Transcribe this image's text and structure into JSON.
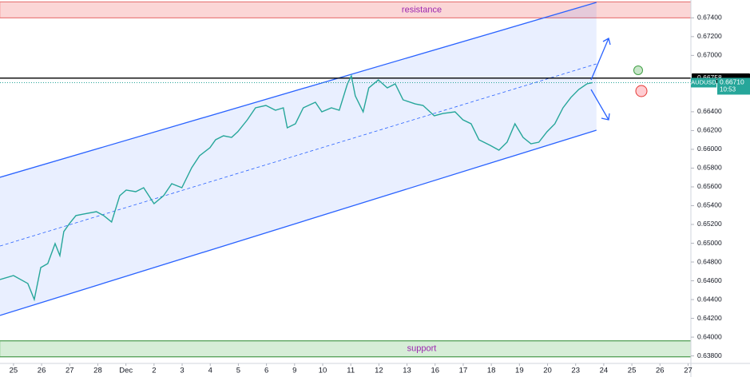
{
  "chart_data": {
    "type": "line",
    "symbol": "AUDUSD",
    "x": [
      -0.48,
      0,
      0.51,
      0.74,
      0.97,
      1.22,
      1.48,
      1.65,
      1.79,
      1.99,
      2.22,
      2.5,
      2.95,
      3.21,
      3.49,
      3.78,
      4.01,
      4.35,
      4.63,
      5.0,
      5.34,
      5.63,
      5.99,
      6.34,
      6.62,
      6.99,
      7.19,
      7.47,
      7.76,
      7.98,
      8.32,
      8.61,
      8.98,
      9.32,
      9.6,
      9.74,
      10.03,
      10.31,
      10.74,
      10.97,
      11.31,
      11.59,
      11.88,
      12.02,
      12.16,
      12.44,
      12.64,
      12.98,
      13.3,
      13.58,
      13.86,
      14.29,
      14.57,
      14.97,
      15.28,
      15.71,
      15.99,
      16.28,
      16.56,
      16.96,
      17.27,
      17.56,
      17.84,
      18.13,
      18.41,
      18.69,
      18.98,
      19.26,
      19.55,
      19.83,
      20.11,
      20.4,
      20.6
    ],
    "series": [
      {
        "name": "AUDUSD",
        "color": "#26a69a",
        "values": [
          0.64613,
          0.64656,
          0.64571,
          0.64401,
          0.64741,
          0.64783,
          0.64996,
          0.64868,
          0.65124,
          0.65209,
          0.65294,
          0.65311,
          0.65336,
          0.65294,
          0.65226,
          0.65506,
          0.65566,
          0.65549,
          0.65591,
          0.65421,
          0.65506,
          0.65634,
          0.65591,
          0.65804,
          0.65932,
          0.66017,
          0.66102,
          0.66144,
          0.66127,
          0.66187,
          0.66314,
          0.66442,
          0.66467,
          0.66416,
          0.66442,
          0.66229,
          0.66272,
          0.66442,
          0.66501,
          0.66399,
          0.66442,
          0.66416,
          0.66697,
          0.66782,
          0.66569,
          0.66399,
          0.66654,
          0.66739,
          0.66654,
          0.66697,
          0.66527,
          0.66484,
          0.66467,
          0.66357,
          0.66382,
          0.66399,
          0.66314,
          0.66272,
          0.66102,
          0.66042,
          0.65991,
          0.66076,
          0.66272,
          0.66127,
          0.66059,
          0.66076,
          0.66187,
          0.66272,
          0.66442,
          0.66552,
          0.66637,
          0.66697,
          0.6671
        ]
      }
    ],
    "xlim": [
      -0.48,
      24.1
    ],
    "xticks": [
      {
        "value": 0,
        "label": "25"
      },
      {
        "value": 1,
        "label": "26"
      },
      {
        "value": 2,
        "label": "27"
      },
      {
        "value": 3,
        "label": "28"
      },
      {
        "value": 4,
        "label": "Dec"
      },
      {
        "value": 5,
        "label": "2"
      },
      {
        "value": 6,
        "label": "3"
      },
      {
        "value": 7,
        "label": "4"
      },
      {
        "value": 8,
        "label": "5"
      },
      {
        "value": 9,
        "label": "6"
      },
      {
        "value": 10,
        "label": "9"
      },
      {
        "value": 11,
        "label": "10"
      },
      {
        "value": 12,
        "label": "11"
      },
      {
        "value": 13,
        "label": "12"
      },
      {
        "value": 14,
        "label": "13"
      },
      {
        "value": 15,
        "label": "16"
      },
      {
        "value": 16,
        "label": "17"
      },
      {
        "value": 17,
        "label": "18"
      },
      {
        "value": 18,
        "label": "19"
      },
      {
        "value": 19,
        "label": "20"
      },
      {
        "value": 20,
        "label": "23"
      },
      {
        "value": 21,
        "label": "24"
      },
      {
        "value": 22,
        "label": "25"
      },
      {
        "value": 23,
        "label": "26"
      },
      {
        "value": 24,
        "label": "27"
      }
    ],
    "ylim": [
      0.6372,
      0.6759
    ],
    "yticks": [
      {
        "value": 0.674,
        "label": "0.67400"
      },
      {
        "value": 0.672,
        "label": "0.67200"
      },
      {
        "value": 0.67,
        "label": "0.67000"
      },
      {
        "value": 0.664,
        "label": "0.66400"
      },
      {
        "value": 0.662,
        "label": "0.66200"
      },
      {
        "value": 0.66,
        "label": "0.66000"
      },
      {
        "value": 0.658,
        "label": "0.65800"
      },
      {
        "value": 0.656,
        "label": "0.65600"
      },
      {
        "value": 0.654,
        "label": "0.65400"
      },
      {
        "value": 0.652,
        "label": "0.65200"
      },
      {
        "value": 0.65,
        "label": "0.65000"
      },
      {
        "value": 0.648,
        "label": "0.64800"
      },
      {
        "value": 0.646,
        "label": "0.64600"
      },
      {
        "value": 0.644,
        "label": "0.64400"
      },
      {
        "value": 0.642,
        "label": "0.64200"
      },
      {
        "value": 0.64,
        "label": "0.64000"
      },
      {
        "value": 0.638,
        "label": "0.63800"
      }
    ],
    "price_line": 0.66758,
    "last_price": {
      "value": 0.6671,
      "label": "0.66710"
    },
    "countdown": "10:53",
    "zones": [
      {
        "label": "resistance",
        "range": [
          0.674,
          0.6757
        ],
        "color": "#f7a5a5"
      },
      {
        "label": "support",
        "range": [
          0.6379,
          0.6396
        ],
        "color": "#a5d6a7"
      }
    ],
    "channel": {
      "color": "#2962ff",
      "upper": {
        "x": [
          -0.48,
          20.74
        ],
        "y": [
          0.65702,
          0.67564
        ]
      },
      "middle": {
        "x": [
          -0.48,
          20.74
        ],
        "y": [
          0.6497,
          0.6691
        ]
      },
      "lower": {
        "x": [
          -0.48,
          20.74
        ],
        "y": [
          0.64231,
          0.66204
        ]
      }
    }
  }
}
